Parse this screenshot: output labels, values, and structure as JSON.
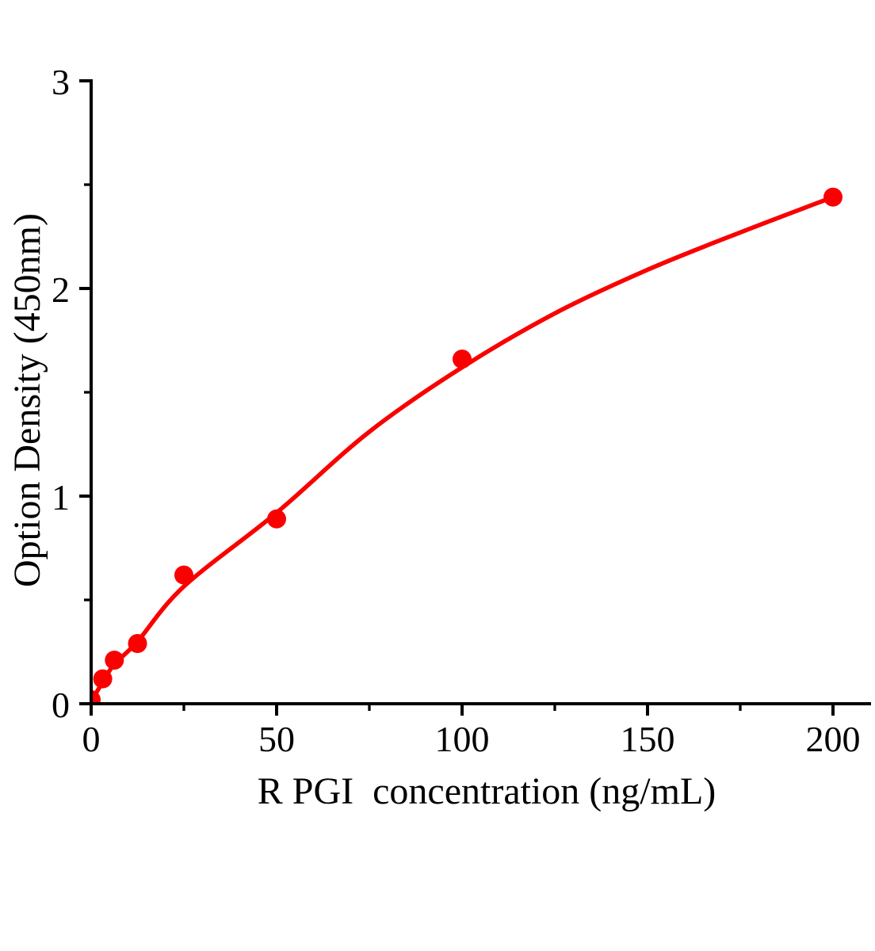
{
  "figure": {
    "background": "#ffffff",
    "description": "ELISA standard curve: optical density versus R PGI concentration"
  },
  "chart_data": {
    "type": "scatter",
    "title": "",
    "xlabel": "R PGI  concentration（ng/mL）",
    "ylabel": "Option Density（450nm）",
    "xlim": [
      0,
      210
    ],
    "ylim": [
      0,
      3.03
    ],
    "grid": false,
    "legend": null,
    "x_axis": {
      "major_ticks": [
        {
          "value": 0,
          "label": "0"
        },
        {
          "value": 50,
          "label": "50"
        },
        {
          "value": 100,
          "label": "100"
        },
        {
          "value": 150,
          "label": "150"
        },
        {
          "value": 200,
          "label": "200"
        }
      ],
      "minor_ticks": [
        25,
        75,
        125,
        175
      ]
    },
    "y_axis": {
      "major_ticks": [
        {
          "value": 0,
          "label": "0"
        },
        {
          "value": 1,
          "label": "1"
        },
        {
          "value": 2,
          "label": "2"
        },
        {
          "value": 3,
          "label": "3"
        }
      ],
      "minor_ticks": [
        0.5,
        1.5,
        2.5
      ]
    },
    "series": [
      {
        "name": "standard-points",
        "type": "scatter",
        "color": "#fa0000",
        "marker": "circle",
        "points": [
          {
            "x": 0,
            "y": 0.02
          },
          {
            "x": 3.125,
            "y": 0.12
          },
          {
            "x": 6.25,
            "y": 0.21
          },
          {
            "x": 12.5,
            "y": 0.29
          },
          {
            "x": 25,
            "y": 0.62
          },
          {
            "x": 50,
            "y": 0.89
          },
          {
            "x": 100,
            "y": 1.66
          },
          {
            "x": 200,
            "y": 2.44
          }
        ]
      },
      {
        "name": "fitted-curve",
        "type": "line",
        "color": "#fa0000",
        "points": [
          {
            "x": 0,
            "y": 0.01
          },
          {
            "x": 3.125,
            "y": 0.105
          },
          {
            "x": 6.25,
            "y": 0.19
          },
          {
            "x": 12.5,
            "y": 0.3
          },
          {
            "x": 25,
            "y": 0.565
          },
          {
            "x": 50,
            "y": 0.92
          },
          {
            "x": 75,
            "y": 1.31
          },
          {
            "x": 100,
            "y": 1.62
          },
          {
            "x": 125,
            "y": 1.88
          },
          {
            "x": 150,
            "y": 2.09
          },
          {
            "x": 175,
            "y": 2.27
          },
          {
            "x": 200,
            "y": 2.44
          }
        ]
      }
    ],
    "colors": {
      "accent": "#fa0000",
      "axis": "#000000",
      "background": "#ffffff"
    }
  }
}
